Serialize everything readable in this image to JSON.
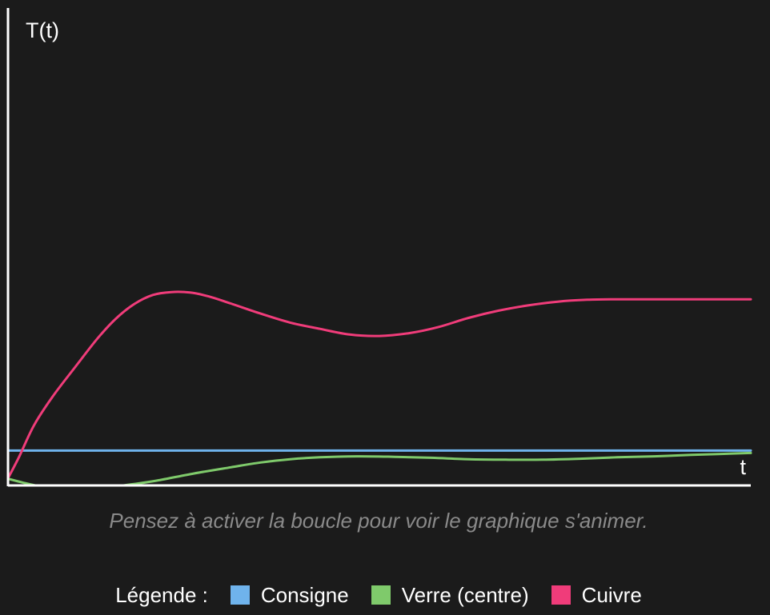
{
  "chart_data": {
    "type": "line",
    "ylabel": "T(t)",
    "xlabel": "t",
    "xlim": [
      0,
      100
    ],
    "ylim": [
      0,
      100
    ],
    "grid": false,
    "series": [
      {
        "name": "Consigne",
        "color": "#6fb3ec",
        "x": [
          0,
          100
        ],
        "y": [
          7.3,
          7.3
        ]
      },
      {
        "name": "Verre (centre)",
        "color": "#7fca6b",
        "x": [
          0,
          2,
          5,
          8,
          12,
          16,
          20,
          25,
          30,
          34,
          38,
          42,
          47,
          52,
          57,
          62,
          67,
          72,
          77,
          82,
          87,
          92,
          96,
          100
        ],
        "y": [
          1.4,
          0.6,
          -0.4,
          -0.8,
          -0.6,
          0.1,
          1.0,
          2.5,
          3.8,
          4.8,
          5.5,
          5.9,
          6.1,
          6.0,
          5.8,
          5.5,
          5.4,
          5.4,
          5.6,
          5.9,
          6.1,
          6.4,
          6.6,
          6.8
        ]
      },
      {
        "name": "Cuivre",
        "color": "#f03c7a",
        "x": [
          0,
          1.5,
          3.5,
          6,
          9,
          12,
          14.5,
          17,
          19.5,
          22,
          24.5,
          27,
          30,
          34,
          38,
          42,
          46,
          50,
          54,
          58,
          62,
          66,
          70,
          74,
          78,
          82,
          86,
          90,
          94,
          100
        ],
        "y": [
          1.5,
          6.0,
          12.6,
          18.6,
          24.7,
          30.7,
          34.9,
          38.0,
          39.9,
          40.5,
          40.4,
          39.6,
          38.1,
          36.0,
          34.1,
          32.8,
          31.6,
          31.3,
          31.9,
          33.2,
          35.1,
          36.6,
          37.7,
          38.5,
          38.9,
          39.0,
          39.0,
          39.0,
          39.0,
          39.0
        ]
      }
    ]
  },
  "hint": "Pensez à activer la boucle pour voir le graphique s'animer.",
  "legend": {
    "title": "Légende :",
    "items": [
      {
        "label": "Consigne",
        "color": "#6fb3ec"
      },
      {
        "label": "Verre (centre)",
        "color": "#7fca6b"
      },
      {
        "label": "Cuivre",
        "color": "#f03c7a"
      }
    ]
  }
}
